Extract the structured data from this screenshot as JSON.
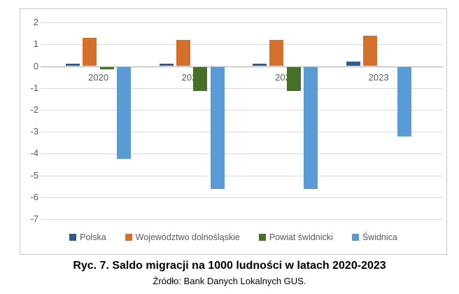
{
  "chart_data": {
    "type": "bar",
    "title": "",
    "categories": [
      "2020",
      "2021",
      "2022",
      "2023"
    ],
    "series": [
      {
        "name": "Polska",
        "color": "#2E5B8F",
        "values": [
          0.1,
          0.1,
          0.1,
          0.2
        ]
      },
      {
        "name": "Województwo dolnośląskie",
        "color": "#D2702C",
        "values": [
          1.3,
          1.2,
          1.2,
          1.4
        ]
      },
      {
        "name": "Powiat świdnicki",
        "color": "#46702A",
        "values": [
          -0.1,
          -1.1,
          -1.1,
          0
        ]
      },
      {
        "name": "Świdnica",
        "color": "#5B9BD5",
        "values": [
          -4.2,
          -5.6,
          -5.6,
          -3.2
        ]
      }
    ],
    "ylim": [
      -7,
      2
    ],
    "ytick_step": 1,
    "yticks": [
      2,
      1,
      0,
      -1,
      -2,
      -3,
      -4,
      -5,
      -6,
      -7
    ],
    "grid": true,
    "legend_position": "bottom"
  },
  "caption": {
    "title": "Ryc. 7. Saldo migracji na 1000 ludności w latach 2020-2023",
    "source": "Źródło: Bank Danych Lokalnych GUS."
  },
  "colors": {
    "grid": "#d9d9d9",
    "zero_line": "#a6a6a6",
    "axis_text": "#595959",
    "plot_border": "#c6c6c6"
  }
}
